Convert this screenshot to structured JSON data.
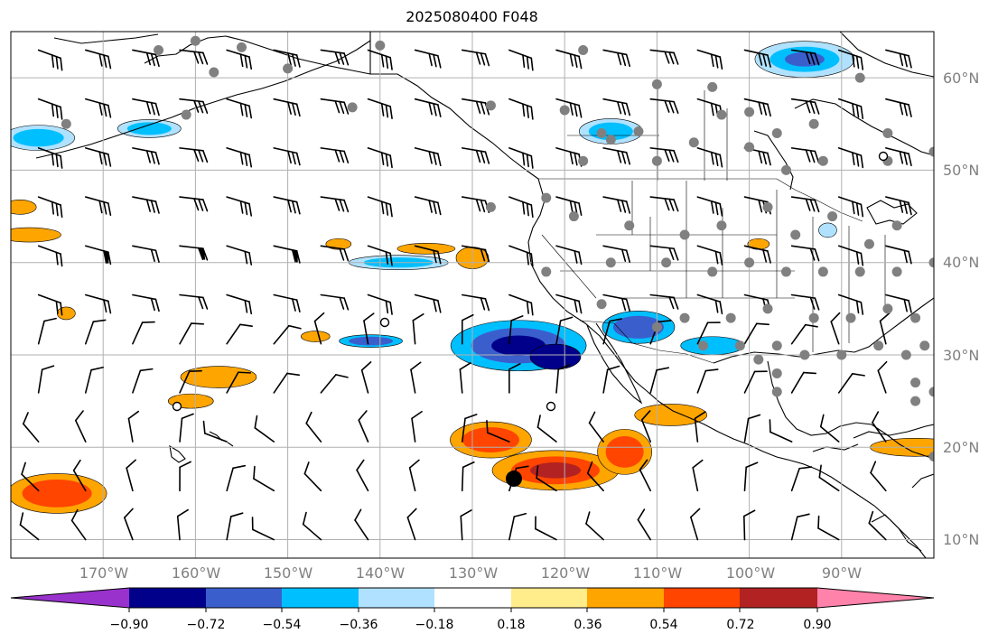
{
  "title": "2025080400 F048",
  "map": {
    "lon_range": [
      -180,
      -80
    ],
    "lat_range": [
      8,
      65
    ],
    "gridlines": true,
    "lat_ticks": [
      {
        "value": 60,
        "label": "60°N"
      },
      {
        "value": 50,
        "label": "50°N"
      },
      {
        "value": 40,
        "label": "40°N"
      },
      {
        "value": 30,
        "label": "30°N"
      },
      {
        "value": 20,
        "label": "20°N"
      },
      {
        "value": 10,
        "label": "10°N"
      }
    ],
    "lon_ticks": [
      {
        "value": -170,
        "label": "170°W"
      },
      {
        "value": -160,
        "label": "160°W"
      },
      {
        "value": -150,
        "label": "150°W"
      },
      {
        "value": -140,
        "label": "140°W"
      },
      {
        "value": -130,
        "label": "130°W"
      },
      {
        "value": -120,
        "label": "120°W"
      },
      {
        "value": -110,
        "label": "110°W"
      },
      {
        "value": -100,
        "label": "100°W"
      },
      {
        "value": -90,
        "label": "90°W"
      }
    ],
    "land_color": "#ffffff",
    "coast_color": "#000000",
    "station_color": "#808080",
    "center_marker": {
      "lon": -125.5,
      "lat": 16.6
    }
  },
  "colorbar": {
    "colors": [
      "#9932cc",
      "#00008b",
      "#3a5fcd",
      "#00bfff",
      "#b0e2ff",
      "#ffffff",
      "#ffec8b",
      "#ffa500",
      "#ff4500",
      "#b22222",
      "#ff82ab"
    ],
    "labels": [
      "−0.90",
      "−0.72",
      "−0.54",
      "−0.36",
      "−0.18",
      "0.18",
      "0.36",
      "0.54",
      "0.72",
      "0.90"
    ]
  },
  "chart_data": {
    "type": "heatmap",
    "title": "2025080400 F048",
    "xlabel": "",
    "ylabel": "",
    "xlim": [
      -180,
      -80
    ],
    "ylim": [
      8,
      65
    ],
    "levels": [
      -0.9,
      -0.72,
      -0.54,
      -0.36,
      -0.18,
      0.18,
      0.36,
      0.54,
      0.72,
      0.9
    ],
    "features": [
      {
        "lon": -177,
        "lat": 53.5,
        "value": -0.4
      },
      {
        "lon": -165,
        "lat": 54,
        "value": -0.4
      },
      {
        "lon": -94,
        "lat": 62,
        "value": -0.6
      },
      {
        "lon": -126,
        "lat": 31,
        "value": -0.45
      },
      {
        "lon": -121,
        "lat": 30,
        "value": -0.8
      },
      {
        "lon": -140,
        "lat": 31.5,
        "value": -0.4
      },
      {
        "lon": -112,
        "lat": 33,
        "value": -0.5
      },
      {
        "lon": -138,
        "lat": 40,
        "value": -0.36
      },
      {
        "lon": -115,
        "lat": 54,
        "value": -0.4
      },
      {
        "lon": -128,
        "lat": 21,
        "value": 0.5
      },
      {
        "lon": -121,
        "lat": 17.5,
        "value": 0.7
      },
      {
        "lon": -114,
        "lat": 19.5,
        "value": 0.55
      },
      {
        "lon": -175,
        "lat": 15,
        "value": 0.55
      },
      {
        "lon": -156,
        "lat": 27.5,
        "value": 0.45
      },
      {
        "lon": -108,
        "lat": 23.5,
        "value": 0.45
      },
      {
        "lon": -83,
        "lat": 20,
        "value": 0.4
      }
    ],
    "barbs": "wind barbs on a ~5° grid, westerly flow north of ~32°N, weaker mixed flow to the south"
  }
}
